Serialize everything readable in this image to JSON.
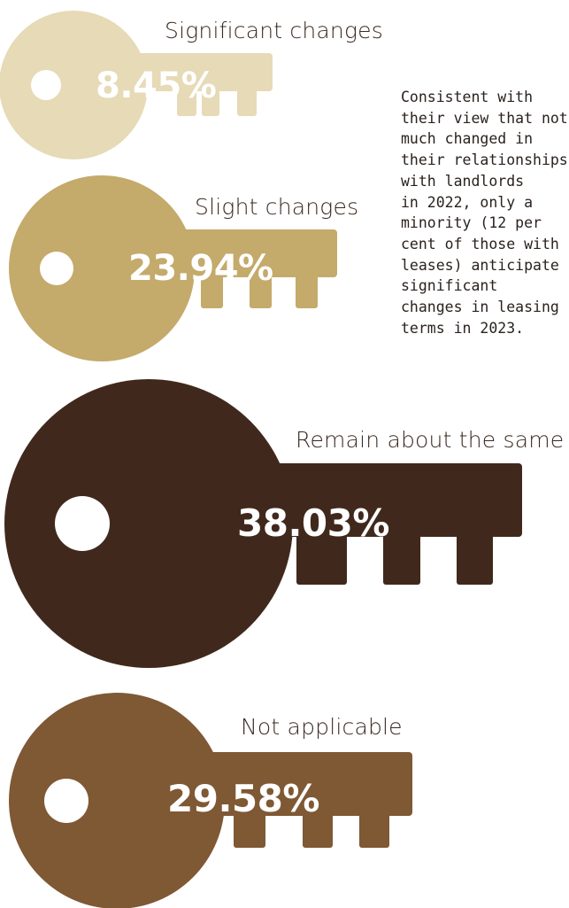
{
  "chart_data": {
    "type": "pictograph",
    "categories": [
      "Significant changes",
      "Slight changes",
      "Remain about the same",
      "Not applicable"
    ],
    "values": [
      8.45,
      23.94,
      38.03,
      29.58
    ],
    "value_labels": [
      "8.45%",
      "23.94%",
      "38.03%",
      "29.58%"
    ],
    "unit": "%",
    "colors": [
      "#e6dab7",
      "#c4aa6b",
      "#40291c",
      "#7f5834"
    ],
    "icon": "key-icon"
  },
  "note": {
    "lines": [
      "Consistent with",
      "their view that not",
      "much changed in",
      "their relationships",
      "with landlords",
      "in 2022, only a",
      "minority (12 per",
      "cent of those with",
      "leases) anticipate",
      "significant",
      "changes in leasing",
      "terms in 2023."
    ]
  }
}
